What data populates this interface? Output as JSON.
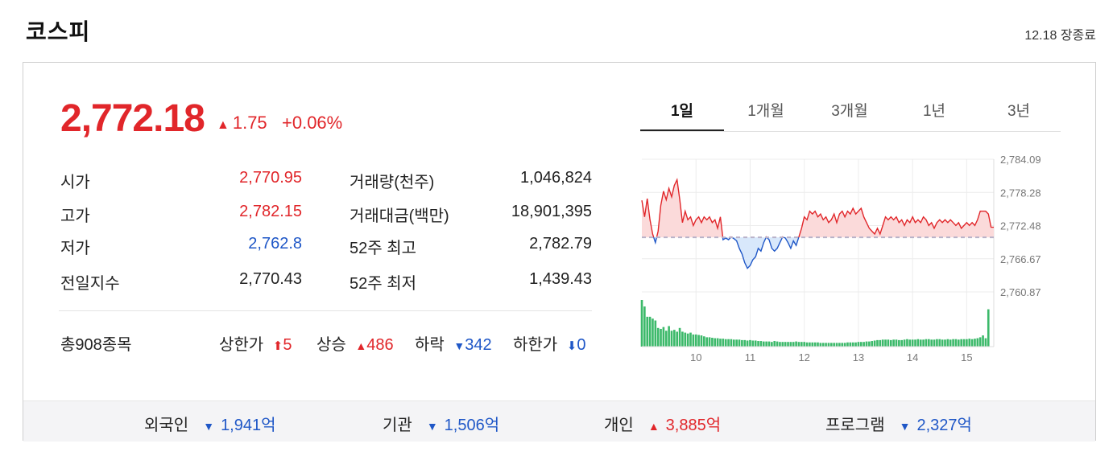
{
  "header": {
    "title": "코스피",
    "date_status": "12.18 장종료"
  },
  "quote": {
    "price": "2,772.18",
    "change_arrow": "▲",
    "change": "1.75",
    "change_pct": "+0.06%",
    "direction": "up"
  },
  "stats_left": [
    {
      "label": "시가",
      "value": "2,770.95",
      "color": "red"
    },
    {
      "label": "고가",
      "value": "2,782.15",
      "color": "red"
    },
    {
      "label": "저가",
      "value": "2,762.8",
      "color": "blue"
    },
    {
      "label": "전일지수",
      "value": "2,770.43",
      "color": "dark"
    }
  ],
  "stats_right": [
    {
      "label": "거래량(천주)",
      "value": "1,046,824"
    },
    {
      "label": "거래대금(백만)",
      "value": "18,901,395"
    },
    {
      "label": "52주 최고",
      "value": "2,782.79"
    },
    {
      "label": "52주 최저",
      "value": "1,439.43"
    }
  ],
  "breadth": {
    "total": "총908종목",
    "limit_up_label": "상한가",
    "limit_up_icon": "⬆",
    "limit_up": "5",
    "rise_label": "상승",
    "rise_icon": "▲",
    "rise": "486",
    "fall_label": "하락",
    "fall_icon": "▼",
    "fall": "342",
    "limit_down_label": "하한가",
    "limit_down_icon": "⬇",
    "limit_down": "0"
  },
  "tabs": [
    "1일",
    "1개월",
    "3개월",
    "1년",
    "3년"
  ],
  "active_tab": "1일",
  "investors": [
    {
      "label": "외국인",
      "arrow": "▼",
      "value": "1,941억",
      "color": "blue"
    },
    {
      "label": "기관",
      "arrow": "▼",
      "value": "1,506억",
      "color": "blue"
    },
    {
      "label": "개인",
      "arrow": "▲",
      "value": "3,885억",
      "color": "red"
    },
    {
      "label": "프로그램",
      "arrow": "▼",
      "value": "2,327억",
      "color": "blue"
    }
  ],
  "colors": {
    "up": "#e1262a",
    "down": "#1f57c7",
    "volume": "#3cb96a",
    "up_fill": "#fbdada",
    "down_fill": "#d8e8fb"
  },
  "chart_data": {
    "type": "line",
    "x_ticks": [
      "10",
      "11",
      "12",
      "13",
      "14",
      "15"
    ],
    "y_ticks": [
      "2,784.09",
      "2,778.28",
      "2,772.48",
      "2,766.67",
      "2,760.87"
    ],
    "ylim": [
      2760.87,
      2784.09
    ],
    "baseline": 2770.43,
    "x_range": [
      9.0,
      15.5
    ],
    "price_series": [
      [
        9.0,
        2776.9
      ],
      [
        9.05,
        2774.0
      ],
      [
        9.1,
        2777.2
      ],
      [
        9.15,
        2773.5
      ],
      [
        9.2,
        2771.0
      ],
      [
        9.25,
        2769.5
      ],
      [
        9.3,
        2771.5
      ],
      [
        9.35,
        2776.0
      ],
      [
        9.4,
        2778.5
      ],
      [
        9.45,
        2777.0
      ],
      [
        9.5,
        2779.0
      ],
      [
        9.55,
        2777.5
      ],
      [
        9.6,
        2779.5
      ],
      [
        9.65,
        2780.5
      ],
      [
        9.7,
        2777.0
      ],
      [
        9.75,
        2773.0
      ],
      [
        9.8,
        2775.0
      ],
      [
        9.85,
        2773.5
      ],
      [
        9.9,
        2774.0
      ],
      [
        9.95,
        2772.5
      ],
      [
        10.0,
        2773.5
      ],
      [
        10.05,
        2774.0
      ],
      [
        10.1,
        2773.0
      ],
      [
        10.15,
        2774.0
      ],
      [
        10.2,
        2773.5
      ],
      [
        10.25,
        2774.0
      ],
      [
        10.3,
        2773.0
      ],
      [
        10.35,
        2773.5
      ],
      [
        10.4,
        2772.0
      ],
      [
        10.45,
        2774.0
      ],
      [
        10.5,
        2770.0
      ],
      [
        10.55,
        2770.3
      ],
      [
        10.6,
        2770.0
      ],
      [
        10.65,
        2770.5
      ],
      [
        10.7,
        2770.2
      ],
      [
        10.75,
        2769.8
      ],
      [
        10.8,
        2768.5
      ],
      [
        10.85,
        2767.5
      ],
      [
        10.9,
        2766.0
      ],
      [
        10.95,
        2765.0
      ],
      [
        11.0,
        2765.5
      ],
      [
        11.05,
        2766.5
      ],
      [
        11.1,
        2767.0
      ],
      [
        11.15,
        2768.5
      ],
      [
        11.2,
        2768.0
      ],
      [
        11.25,
        2769.5
      ],
      [
        11.3,
        2770.5
      ],
      [
        11.35,
        2770.0
      ],
      [
        11.4,
        2768.5
      ],
      [
        11.45,
        2768.0
      ],
      [
        11.5,
        2768.5
      ],
      [
        11.55,
        2769.5
      ],
      [
        11.6,
        2770.5
      ],
      [
        11.65,
        2770.3
      ],
      [
        11.7,
        2769.5
      ],
      [
        11.75,
        2768.5
      ],
      [
        11.8,
        2769.8
      ],
      [
        11.85,
        2769.0
      ],
      [
        11.9,
        2770.5
      ],
      [
        11.95,
        2772.0
      ],
      [
        12.0,
        2774.0
      ],
      [
        12.05,
        2773.5
      ],
      [
        12.1,
        2775.0
      ],
      [
        12.15,
        2774.5
      ],
      [
        12.2,
        2775.0
      ],
      [
        12.25,
        2774.0
      ],
      [
        12.3,
        2774.5
      ],
      [
        12.35,
        2773.5
      ],
      [
        12.4,
        2774.0
      ],
      [
        12.45,
        2773.0
      ],
      [
        12.5,
        2773.5
      ],
      [
        12.55,
        2774.5
      ],
      [
        12.6,
        2773.0
      ],
      [
        12.65,
        2774.5
      ],
      [
        12.7,
        2775.0
      ],
      [
        12.75,
        2774.0
      ],
      [
        12.8,
        2775.0
      ],
      [
        12.85,
        2774.5
      ],
      [
        12.9,
        2775.5
      ],
      [
        12.95,
        2774.5
      ],
      [
        13.0,
        2775.0
      ],
      [
        13.05,
        2775.5
      ],
      [
        13.1,
        2774.0
      ],
      [
        13.15,
        2773.0
      ],
      [
        13.2,
        2772.0
      ],
      [
        13.25,
        2771.5
      ],
      [
        13.3,
        2771.0
      ],
      [
        13.35,
        2772.0
      ],
      [
        13.4,
        2771.0
      ],
      [
        13.45,
        2772.5
      ],
      [
        13.5,
        2774.0
      ],
      [
        13.55,
        2773.5
      ],
      [
        13.6,
        2774.0
      ],
      [
        13.65,
        2773.5
      ],
      [
        13.7,
        2774.0
      ],
      [
        13.75,
        2773.0
      ],
      [
        13.8,
        2773.5
      ],
      [
        13.85,
        2772.5
      ],
      [
        13.9,
        2773.5
      ],
      [
        13.95,
        2773.0
      ],
      [
        14.0,
        2774.0
      ],
      [
        14.05,
        2773.0
      ],
      [
        14.1,
        2773.5
      ],
      [
        14.15,
        2773.0
      ],
      [
        14.2,
        2774.0
      ],
      [
        14.25,
        2773.5
      ],
      [
        14.3,
        2772.5
      ],
      [
        14.35,
        2773.0
      ],
      [
        14.4,
        2772.0
      ],
      [
        14.45,
        2773.0
      ],
      [
        14.5,
        2773.5
      ],
      [
        14.55,
        2773.0
      ],
      [
        14.6,
        2773.5
      ],
      [
        14.65,
        2773.0
      ],
      [
        14.7,
        2773.5
      ],
      [
        14.75,
        2773.0
      ],
      [
        14.8,
        2772.5
      ],
      [
        14.85,
        2773.0
      ],
      [
        14.9,
        2772.0
      ],
      [
        14.95,
        2772.5
      ],
      [
        15.0,
        2773.0
      ],
      [
        15.05,
        2772.5
      ],
      [
        15.1,
        2773.0
      ],
      [
        15.15,
        2772.5
      ],
      [
        15.2,
        2773.5
      ],
      [
        15.25,
        2775.0
      ],
      [
        15.3,
        2775.0
      ],
      [
        15.35,
        2775.0
      ],
      [
        15.4,
        2774.5
      ],
      [
        15.45,
        2772.2
      ],
      [
        15.5,
        2772.18
      ]
    ],
    "volume_series": [
      [
        9.0,
        1.0
      ],
      [
        9.05,
        0.86
      ],
      [
        9.1,
        0.64
      ],
      [
        9.15,
        0.64
      ],
      [
        9.2,
        0.6
      ],
      [
        9.25,
        0.56
      ],
      [
        9.3,
        0.4
      ],
      [
        9.35,
        0.38
      ],
      [
        9.4,
        0.42
      ],
      [
        9.45,
        0.34
      ],
      [
        9.5,
        0.44
      ],
      [
        9.55,
        0.34
      ],
      [
        9.6,
        0.36
      ],
      [
        9.65,
        0.32
      ],
      [
        9.7,
        0.4
      ],
      [
        9.75,
        0.32
      ],
      [
        9.8,
        0.3
      ],
      [
        9.85,
        0.28
      ],
      [
        9.9,
        0.3
      ],
      [
        9.95,
        0.26
      ],
      [
        10.0,
        0.26
      ],
      [
        10.05,
        0.25
      ],
      [
        10.1,
        0.24
      ],
      [
        10.15,
        0.22
      ],
      [
        10.2,
        0.2
      ],
      [
        10.25,
        0.2
      ],
      [
        10.3,
        0.19
      ],
      [
        10.35,
        0.18
      ],
      [
        10.4,
        0.18
      ],
      [
        10.45,
        0.17
      ],
      [
        10.5,
        0.17
      ],
      [
        10.55,
        0.16
      ],
      [
        10.6,
        0.16
      ],
      [
        10.65,
        0.16
      ],
      [
        10.7,
        0.15
      ],
      [
        10.75,
        0.15
      ],
      [
        10.8,
        0.15
      ],
      [
        10.85,
        0.14
      ],
      [
        10.9,
        0.14
      ],
      [
        10.95,
        0.13
      ],
      [
        11.0,
        0.14
      ],
      [
        11.05,
        0.13
      ],
      [
        11.1,
        0.13
      ],
      [
        11.15,
        0.12
      ],
      [
        11.2,
        0.12
      ],
      [
        11.25,
        0.11
      ],
      [
        11.3,
        0.11
      ],
      [
        11.35,
        0.11
      ],
      [
        11.4,
        0.1
      ],
      [
        11.45,
        0.12
      ],
      [
        11.5,
        0.11
      ],
      [
        11.55,
        0.1
      ],
      [
        11.6,
        0.1
      ],
      [
        11.65,
        0.1
      ],
      [
        11.7,
        0.1
      ],
      [
        11.75,
        0.1
      ],
      [
        11.8,
        0.1
      ],
      [
        11.85,
        0.11
      ],
      [
        11.9,
        0.1
      ],
      [
        11.95,
        0.1
      ],
      [
        12.0,
        0.1
      ],
      [
        12.05,
        0.09
      ],
      [
        12.1,
        0.09
      ],
      [
        12.15,
        0.09
      ],
      [
        12.2,
        0.09
      ],
      [
        12.25,
        0.09
      ],
      [
        12.3,
        0.08
      ],
      [
        12.35,
        0.08
      ],
      [
        12.4,
        0.08
      ],
      [
        12.45,
        0.08
      ],
      [
        12.5,
        0.08
      ],
      [
        12.55,
        0.08
      ],
      [
        12.6,
        0.08
      ],
      [
        12.65,
        0.08
      ],
      [
        12.7,
        0.08
      ],
      [
        12.75,
        0.08
      ],
      [
        12.8,
        0.09
      ],
      [
        12.85,
        0.09
      ],
      [
        12.9,
        0.09
      ],
      [
        12.95,
        0.09
      ],
      [
        13.0,
        0.1
      ],
      [
        13.05,
        0.1
      ],
      [
        13.1,
        0.1
      ],
      [
        13.15,
        0.11
      ],
      [
        13.2,
        0.11
      ],
      [
        13.25,
        0.12
      ],
      [
        13.3,
        0.13
      ],
      [
        13.35,
        0.14
      ],
      [
        13.4,
        0.14
      ],
      [
        13.45,
        0.15
      ],
      [
        13.5,
        0.15
      ],
      [
        13.55,
        0.15
      ],
      [
        13.6,
        0.14
      ],
      [
        13.65,
        0.15
      ],
      [
        13.7,
        0.15
      ],
      [
        13.75,
        0.14
      ],
      [
        13.8,
        0.14
      ],
      [
        13.85,
        0.15
      ],
      [
        13.9,
        0.16
      ],
      [
        13.95,
        0.15
      ],
      [
        14.0,
        0.15
      ],
      [
        14.05,
        0.15
      ],
      [
        14.1,
        0.16
      ],
      [
        14.15,
        0.15
      ],
      [
        14.2,
        0.15
      ],
      [
        14.25,
        0.16
      ],
      [
        14.3,
        0.16
      ],
      [
        14.35,
        0.15
      ],
      [
        14.4,
        0.15
      ],
      [
        14.45,
        0.16
      ],
      [
        14.5,
        0.16
      ],
      [
        14.55,
        0.15
      ],
      [
        14.6,
        0.15
      ],
      [
        14.65,
        0.16
      ],
      [
        14.7,
        0.15
      ],
      [
        14.75,
        0.16
      ],
      [
        14.8,
        0.16
      ],
      [
        14.85,
        0.15
      ],
      [
        14.9,
        0.16
      ],
      [
        14.95,
        0.16
      ],
      [
        15.0,
        0.16
      ],
      [
        15.05,
        0.17
      ],
      [
        15.1,
        0.16
      ],
      [
        15.15,
        0.17
      ],
      [
        15.2,
        0.18
      ],
      [
        15.25,
        0.2
      ],
      [
        15.3,
        0.24
      ],
      [
        15.35,
        0.18
      ],
      [
        15.4,
        0.8
      ]
    ]
  }
}
